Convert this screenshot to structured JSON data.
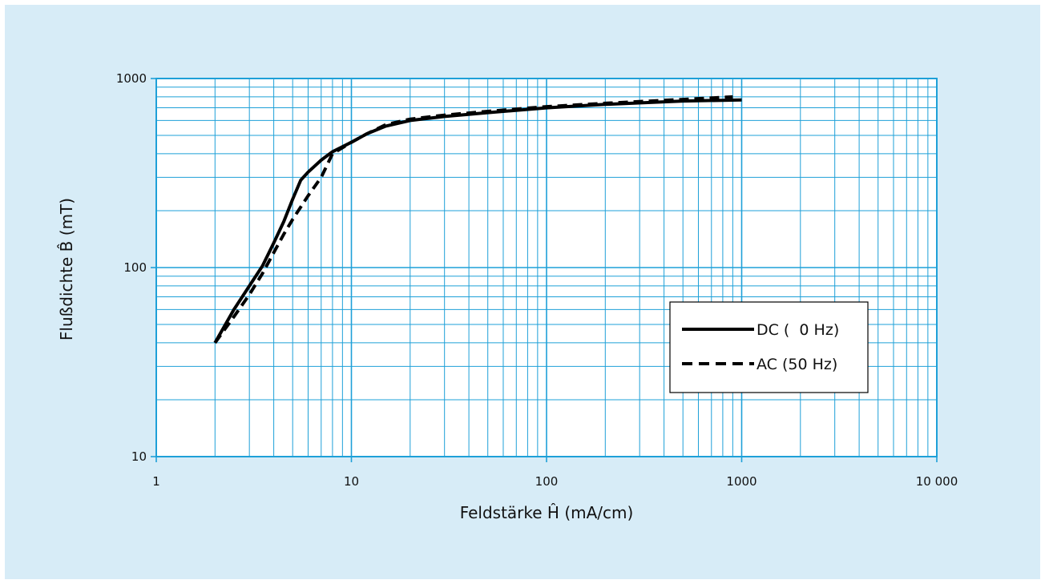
{
  "chart_data": {
    "type": "line",
    "xlabel": "Feldstärke Ĥ (mA/cm)",
    "ylabel": "Flußdichte B̂ (mT)",
    "xscale": "log",
    "yscale": "log",
    "xlim": [
      1,
      10000
    ],
    "ylim": [
      10,
      1000
    ],
    "xticks": [
      {
        "value": 1,
        "label": "1"
      },
      {
        "value": 10,
        "label": "10"
      },
      {
        "value": 100,
        "label": "100"
      },
      {
        "value": 1000,
        "label": "1000"
      },
      {
        "value": 10000,
        "label": "10 000"
      }
    ],
    "yticks": [
      {
        "value": 10,
        "label": "10"
      },
      {
        "value": 100,
        "label": "100"
      },
      {
        "value": 1000,
        "label": "1000"
      }
    ],
    "grid": true,
    "legend_position": "right",
    "series": [
      {
        "name": "DC (  0 Hz)",
        "style": "solid",
        "x": [
          2,
          2.5,
          3,
          3.5,
          4,
          4.5,
          5,
          5.5,
          6,
          7,
          8,
          10,
          12,
          15,
          20,
          30,
          50,
          100,
          200,
          500,
          1000
        ],
        "y": [
          40,
          60,
          80,
          102,
          135,
          175,
          230,
          290,
          320,
          370,
          410,
          460,
          510,
          560,
          600,
          630,
          660,
          700,
          730,
          760,
          770
        ]
      },
      {
        "name": "AC (50 Hz)",
        "style": "dashed",
        "x": [
          2,
          2.5,
          3,
          3.5,
          4,
          4.5,
          5,
          6,
          7,
          8,
          10,
          12,
          15,
          20,
          30,
          50,
          100,
          200,
          500,
          900
        ],
        "y": [
          40,
          55,
          72,
          93,
          120,
          150,
          180,
          240,
          300,
          400,
          460,
          510,
          570,
          610,
          640,
          670,
          710,
          740,
          775,
          800
        ]
      }
    ],
    "colors": {
      "background": "#d7ecf7",
      "grid": "#1ea0d8",
      "line": "#000000"
    }
  }
}
